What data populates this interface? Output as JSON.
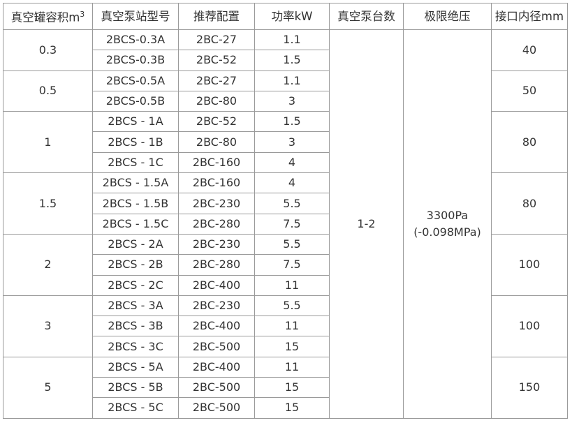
{
  "headers": [
    "真空罐容积m",
    "真空泵站型号",
    "推荐配置",
    "功率kW",
    "真空泵台数",
    "极限绝压",
    "接口内径mm"
  ],
  "header_sup": "3",
  "pump_count": "1-2",
  "pressure_line1": "3300Pa",
  "pressure_line2": "(-0.098MPa)",
  "groups": [
    {
      "volume": "0.3",
      "diameter": "40",
      "rows": [
        [
          "2BCS-0.3A",
          "2BC-27",
          "1.1"
        ],
        [
          "2BCS-0.3B",
          "2BC-52",
          "1.5"
        ]
      ]
    },
    {
      "volume": "0.5",
      "diameter": "50",
      "rows": [
        [
          "2BCS-0.5A",
          "2BC-27",
          "1.1"
        ],
        [
          "2BCS-0.5B",
          "2BC-80",
          "3"
        ]
      ]
    },
    {
      "volume": "1",
      "diameter": "80",
      "rows": [
        [
          "2BCS - 1A",
          "2BC-52",
          "1.5"
        ],
        [
          "2BCS - 1B",
          "2BC-80",
          "3"
        ],
        [
          "2BCS - 1C",
          "2BC-160",
          "4"
        ]
      ]
    },
    {
      "volume": "1.5",
      "diameter": "80",
      "rows": [
        [
          "2BCS - 1.5A",
          "2BC-160",
          "4"
        ],
        [
          "2BCS - 1.5B",
          "2BC-230",
          "5.5"
        ],
        [
          "2BCS - 1.5C",
          "2BC-280",
          "7.5"
        ]
      ]
    },
    {
      "volume": "2",
      "diameter": "100",
      "rows": [
        [
          "2BCS - 2A",
          "2BC-230",
          "5.5"
        ],
        [
          "2BCS - 2B",
          "2BC-280",
          "7.5"
        ],
        [
          "2BCS - 2C",
          "2BC-400",
          "11"
        ]
      ]
    },
    {
      "volume": "3",
      "diameter": "100",
      "rows": [
        [
          "2BCS - 3A",
          "2BC-230",
          "5.5"
        ],
        [
          "2BCS - 3B",
          "2BC-400",
          "11"
        ],
        [
          "2BCS - 3C",
          "2BC-500",
          "15"
        ]
      ]
    },
    {
      "volume": "5",
      "diameter": "150",
      "rows": [
        [
          "2BCS - 5A",
          "2BC-400",
          "11"
        ],
        [
          "2BCS - 5B",
          "2BC-500",
          "15"
        ],
        [
          "2BCS - 5C",
          "2BC-500",
          "15"
        ]
      ]
    }
  ]
}
